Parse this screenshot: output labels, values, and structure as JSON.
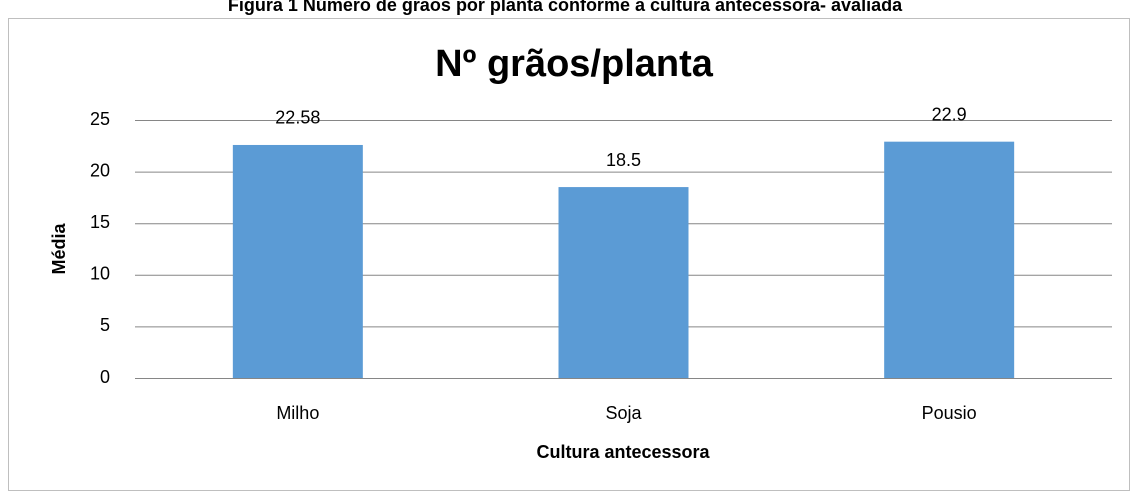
{
  "caption": "Figura 1 Número de grãos por planta conforme a cultura antecessora- avaliada",
  "chart_data": {
    "type": "bar",
    "title": "Nº grãos/planta",
    "categories": [
      "Milho",
      "Soja",
      "Pousio"
    ],
    "values": [
      22.58,
      18.5,
      22.9
    ],
    "color": "#5b9bd5",
    "xlabel": "Cultura antecessora",
    "ylabel": "Média",
    "ylim": [
      0,
      25
    ],
    "yticks": [
      0,
      5,
      10,
      15,
      20,
      25
    ],
    "grid": true
  }
}
